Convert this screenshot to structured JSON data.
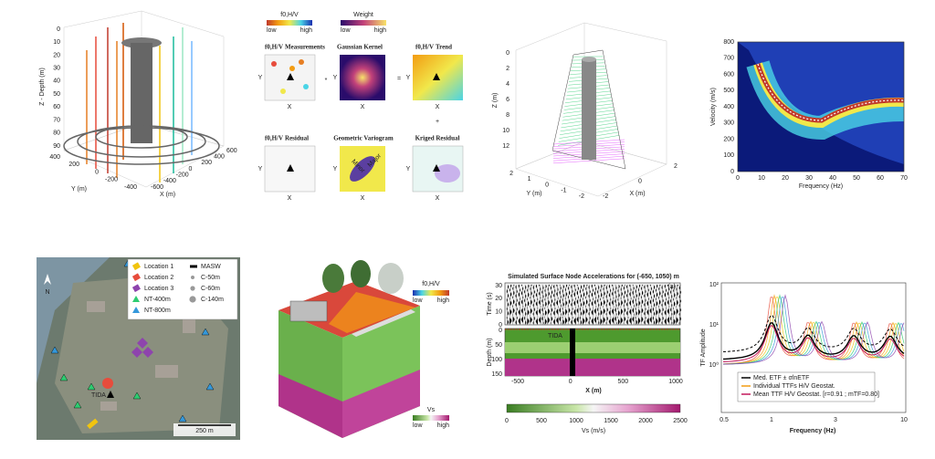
{
  "panel_3d_boreholes": {
    "z_label": "Z - Depth (m)",
    "y_label": "Y (m)",
    "x_label": "X (m)",
    "z_ticks": [
      "0",
      "10",
      "20",
      "30",
      "40",
      "50",
      "60",
      "70",
      "80",
      "90"
    ],
    "y_ticks": [
      "400",
      "200",
      "0",
      "-200",
      "-400"
    ],
    "x_ticks": [
      "-600",
      "-400",
      "-200",
      "0",
      "200",
      "400",
      "600"
    ]
  },
  "panel_kriging": {
    "colorbar_f0": {
      "title": "f0,H/V",
      "low": "low",
      "high": "high"
    },
    "colorbar_weight": {
      "title": "Weight",
      "low": "low",
      "high": "high"
    },
    "x": "X",
    "y": "Y",
    "measurements": {
      "symbol": "f0,H/V",
      "title": "Measurements"
    },
    "kernel": "Gaussian Kernel",
    "trend": {
      "symbol": "f0,H/V",
      "title": "Trend"
    },
    "residual": {
      "symbol": "f0,H/V",
      "title": "Residual"
    },
    "variogram": "Geometric Variogram",
    "kriged": "Kriged Residual",
    "minor": "Minor",
    "major": "Major",
    "convolve": "*",
    "equals": "=",
    "plus": "+"
  },
  "panel_3d_slice": {
    "z_label": "Z (m)",
    "y_label": "Y (m)",
    "x_label": "X (m)",
    "z_ticks": [
      "0",
      "2",
      "4",
      "6",
      "8",
      "10",
      "12"
    ],
    "y_ticks": [
      "2",
      "1",
      "0",
      "-1",
      "-2"
    ],
    "x_ticks": [
      "-2",
      "0",
      "2"
    ]
  },
  "panel_dispersion": {
    "y_label": "Velocity (m/s)",
    "x_label": "Frequency (Hz)",
    "y_ticks": [
      "800",
      "700",
      "600",
      "500",
      "400",
      "300",
      "200",
      "100",
      "0"
    ],
    "x_ticks": [
      "0",
      "10",
      "20",
      "30",
      "40",
      "50",
      "60",
      "70"
    ]
  },
  "panel_map": {
    "north": "N",
    "site": "TIDA",
    "scale": "250 m",
    "legend": [
      "Location 1",
      "Location 2",
      "Location 3",
      "NT-400m",
      "NT-800m",
      "MASW",
      "C-50m",
      "C-60m",
      "C-140m"
    ]
  },
  "panel_block": {
    "colorbar_f0": {
      "title": "f0,H/V",
      "low": "low",
      "high": "high"
    },
    "colorbar_vs": {
      "title": "Vs",
      "low": "low",
      "high": "high"
    }
  },
  "panel_simulation": {
    "title": "Simulated Surface Node Accelerations for (-650, 1050) m",
    "tag": "(a)",
    "time_label": "Time (s)",
    "depth_label": "Depth (m)",
    "site": "TIDA",
    "time_ticks": [
      "30",
      "20",
      "10",
      "0"
    ],
    "depth_ticks": [
      "0",
      "50",
      "100",
      "150"
    ],
    "x_label": "X (m)",
    "x_ticks": [
      "-500",
      "0",
      "500",
      "1000"
    ],
    "colorbar_ticks": [
      "0",
      "500",
      "1000",
      "1500",
      "2000",
      "2500"
    ],
    "colorbar_label": "Vs (m/s)"
  },
  "panel_transfer": {
    "y_label": "TF Amplitude",
    "x_label": "Frequency (Hz)",
    "y_ticks": [
      "10²",
      "10¹",
      "10⁰"
    ],
    "x_ticks": [
      "0.5",
      "1",
      "3",
      "10"
    ],
    "legend": [
      "Med. ETF ± σlnETF",
      "Individual TTFs H/V Geostat.",
      "Mean TTF H/V Geostat. [r=0.91 ; mTF=0.80]"
    ]
  }
}
